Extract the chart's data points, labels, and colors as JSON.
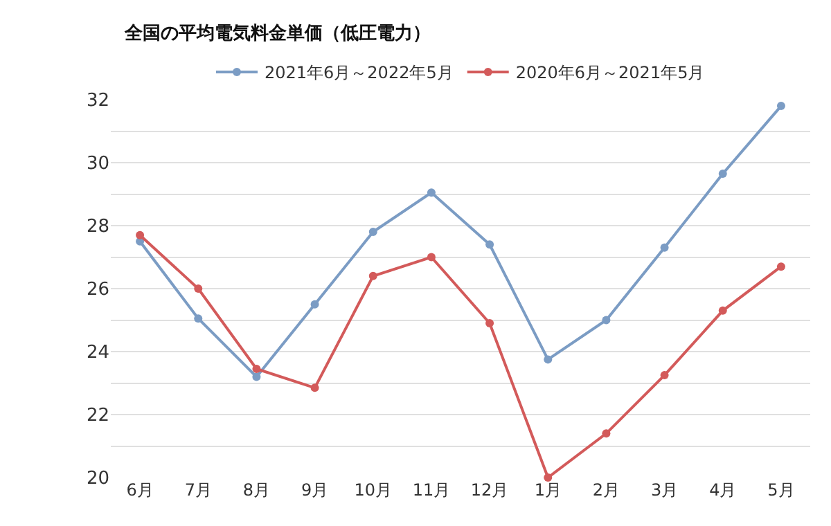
{
  "chart_data": {
    "type": "line",
    "title": "全国の平均電気料金単価（低圧電力）",
    "categories": [
      "6月",
      "7月",
      "8月",
      "9月",
      "10月",
      "11月",
      "12月",
      "1月",
      "2月",
      "3月",
      "4月",
      "5月"
    ],
    "series": [
      {
        "name": "2021年6月～2022年5月",
        "color": "#7b9cc4",
        "values": [
          27.5,
          25.05,
          23.2,
          25.5,
          27.8,
          29.05,
          27.4,
          23.75,
          25.0,
          27.3,
          29.65,
          31.8
        ]
      },
      {
        "name": "2020年6月～2021年5月",
        "color": "#d35a5a",
        "values": [
          27.7,
          26.0,
          23.45,
          22.85,
          26.4,
          27.0,
          24.9,
          20.0,
          21.4,
          23.25,
          25.3,
          26.7
        ]
      }
    ],
    "ylim": [
      20,
      32
    ],
    "yticks": [
      20,
      {
        "value": 21,
        "label": null
      },
      22,
      {
        "value": 23,
        "label": null
      },
      24,
      {
        "value": 25,
        "label": null
      },
      26,
      {
        "value": 27,
        "label": null
      },
      28,
      {
        "value": 29,
        "label": null
      },
      30,
      {
        "value": 31,
        "label": null
      },
      32
    ],
    "grid": "y",
    "legend": "top",
    "marker": "circle",
    "line_style": "solid"
  }
}
